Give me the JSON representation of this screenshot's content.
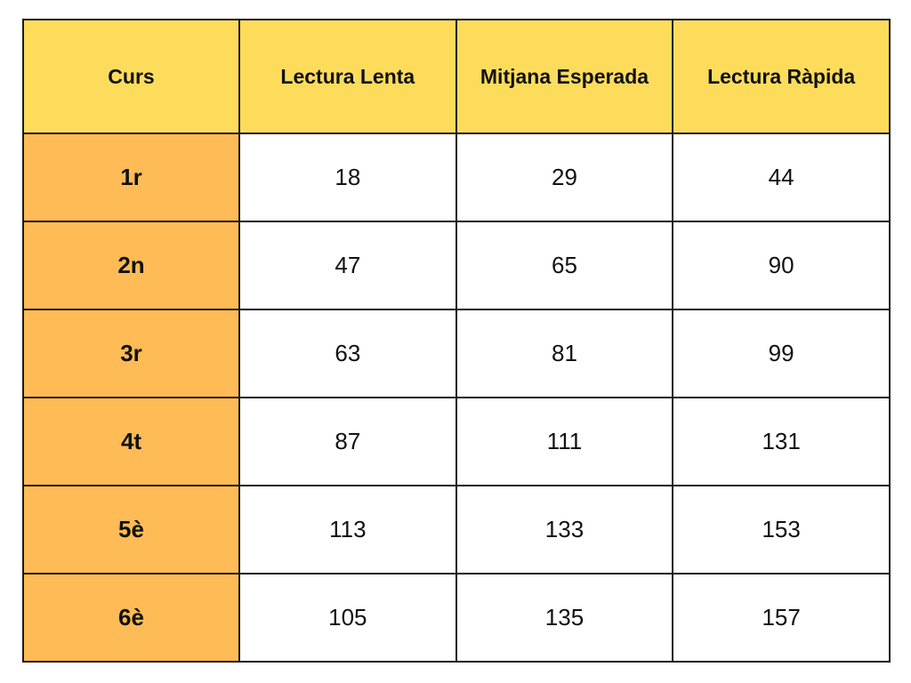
{
  "colors": {
    "header_background": "#fddc5c",
    "row_header_background": "#ffbb55",
    "cell_background": "#ffffff",
    "border": "#1a1a1a",
    "text": "#111111"
  },
  "chart_data": {
    "type": "table",
    "columns": [
      "Curs",
      "Lectura Lenta",
      "Mitjana Esperada",
      "Lectura Ràpida"
    ],
    "rows": [
      {
        "label": "1r",
        "values": [
          "18",
          "29",
          "44"
        ]
      },
      {
        "label": "2n",
        "values": [
          "47",
          "65",
          "90"
        ]
      },
      {
        "label": "3r",
        "values": [
          "63",
          "81",
          "99"
        ]
      },
      {
        "label": "4t",
        "values": [
          "87",
          "111",
          "131"
        ]
      },
      {
        "label": "5è",
        "values": [
          "113",
          "133",
          "153"
        ]
      },
      {
        "label": "6è",
        "values": [
          "105",
          "135",
          "157"
        ]
      }
    ]
  }
}
